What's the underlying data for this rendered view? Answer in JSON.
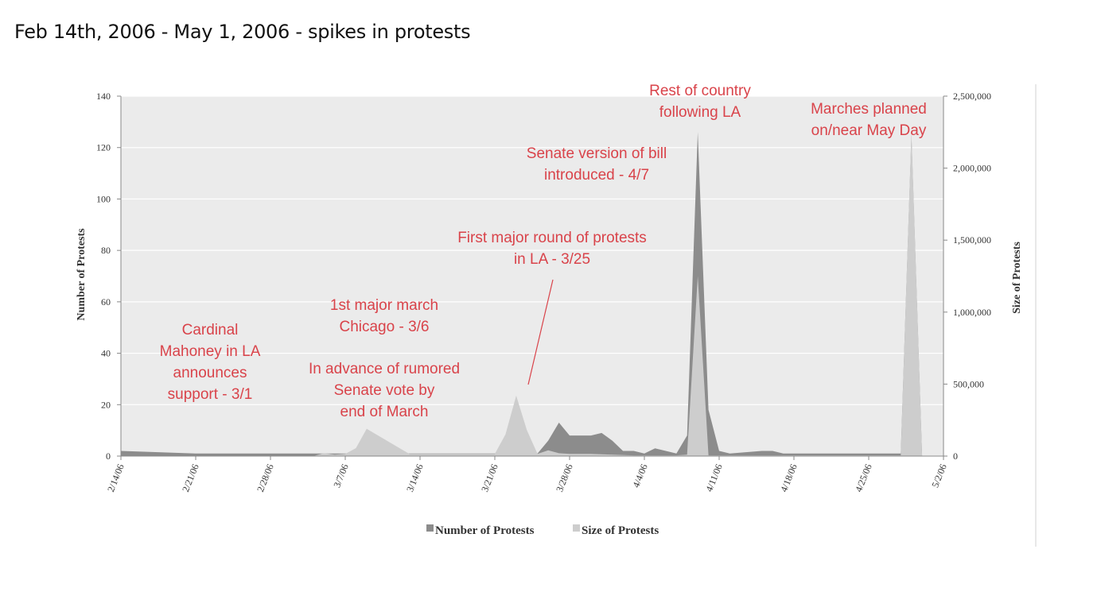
{
  "slide_title": "Feb 14th, 2006 - May 1,  2006 - spikes in protests",
  "chart_data": {
    "type": "area",
    "x_axis": {
      "ticks": [
        "2/14/06",
        "2/21/06",
        "2/28/06",
        "3/7/06",
        "3/14/06",
        "3/21/06",
        "3/28/06",
        "4/4/06",
        "4/11/06",
        "4/18/06",
        "4/25/06",
        "5/2/06"
      ],
      "range_days": [
        0,
        77
      ]
    },
    "y_left": {
      "label": "Number of Protests",
      "range": [
        0,
        140
      ],
      "ticks": [
        0,
        20,
        40,
        60,
        80,
        100,
        120,
        140
      ]
    },
    "y_right": {
      "label": "Size of Protests",
      "range": [
        0,
        2500000
      ],
      "ticks": [
        0,
        500000,
        1000000,
        1500000,
        2000000,
        2500000
      ],
      "tick_labels": [
        "0",
        "500,000",
        "1,000,000",
        "1,500,000",
        "2,000,000",
        "2,500,000"
      ]
    },
    "grid": "horizontal",
    "legend_position": "bottom",
    "series": [
      {
        "name": "Number of Protests",
        "axis": "left",
        "color": "#8c8c8c",
        "points": [
          [
            0,
            2
          ],
          [
            7,
            1
          ],
          [
            14,
            1
          ],
          [
            21,
            1
          ],
          [
            22,
            1
          ],
          [
            28,
            1
          ],
          [
            35,
            1
          ],
          [
            38,
            0
          ],
          [
            39,
            1
          ],
          [
            40,
            6
          ],
          [
            41,
            13
          ],
          [
            42,
            8
          ],
          [
            43,
            8
          ],
          [
            44,
            8
          ],
          [
            45,
            9
          ],
          [
            46,
            6
          ],
          [
            47,
            2
          ],
          [
            48,
            2
          ],
          [
            49,
            1
          ],
          [
            50,
            3
          ],
          [
            51,
            2
          ],
          [
            52,
            1
          ],
          [
            53,
            8
          ],
          [
            54,
            126
          ],
          [
            55,
            18
          ],
          [
            56,
            2
          ],
          [
            57,
            1
          ],
          [
            60,
            2
          ],
          [
            61,
            2
          ],
          [
            62,
            1
          ],
          [
            70,
            1
          ],
          [
            73,
            1
          ],
          [
            74,
            125
          ],
          [
            75,
            0
          ]
        ]
      },
      {
        "name": "Size of Protests",
        "axis": "right",
        "color": "#cdcdcd",
        "points": [
          [
            0,
            0
          ],
          [
            18,
            0
          ],
          [
            19,
            20000
          ],
          [
            20,
            10000
          ],
          [
            21,
            15000
          ],
          [
            22,
            55000
          ],
          [
            23,
            190000
          ],
          [
            27,
            15000
          ],
          [
            35,
            15000
          ],
          [
            36,
            150000
          ],
          [
            37,
            420000
          ],
          [
            38,
            180000
          ],
          [
            39,
            15000
          ],
          [
            40,
            40000
          ],
          [
            41,
            20000
          ],
          [
            42,
            15000
          ],
          [
            44,
            15000
          ],
          [
            46,
            10000
          ],
          [
            48,
            5000
          ],
          [
            52,
            5000
          ],
          [
            53,
            10000
          ],
          [
            54,
            1250000
          ],
          [
            55,
            5000
          ],
          [
            73,
            5000
          ],
          [
            74,
            2250000
          ],
          [
            75,
            0
          ]
        ]
      }
    ],
    "annotations": [
      {
        "lines": [
          "Cardinal",
          "Mahoney in LA",
          "announces",
          "support - 3/1"
        ]
      },
      {
        "lines": [
          "1st major march",
          "Chicago - 3/6"
        ]
      },
      {
        "lines": [
          "In advance of rumored",
          "Senate vote by",
          "end of March"
        ]
      },
      {
        "lines": [
          "First major round of protests",
          "in LA - 3/25"
        ]
      },
      {
        "lines": [
          "Senate version of bill",
          "introduced - 4/7"
        ]
      },
      {
        "lines": [
          "Rest of country",
          "following LA"
        ]
      },
      {
        "lines": [
          "Marches planned",
          "on/near May Day"
        ]
      }
    ]
  }
}
